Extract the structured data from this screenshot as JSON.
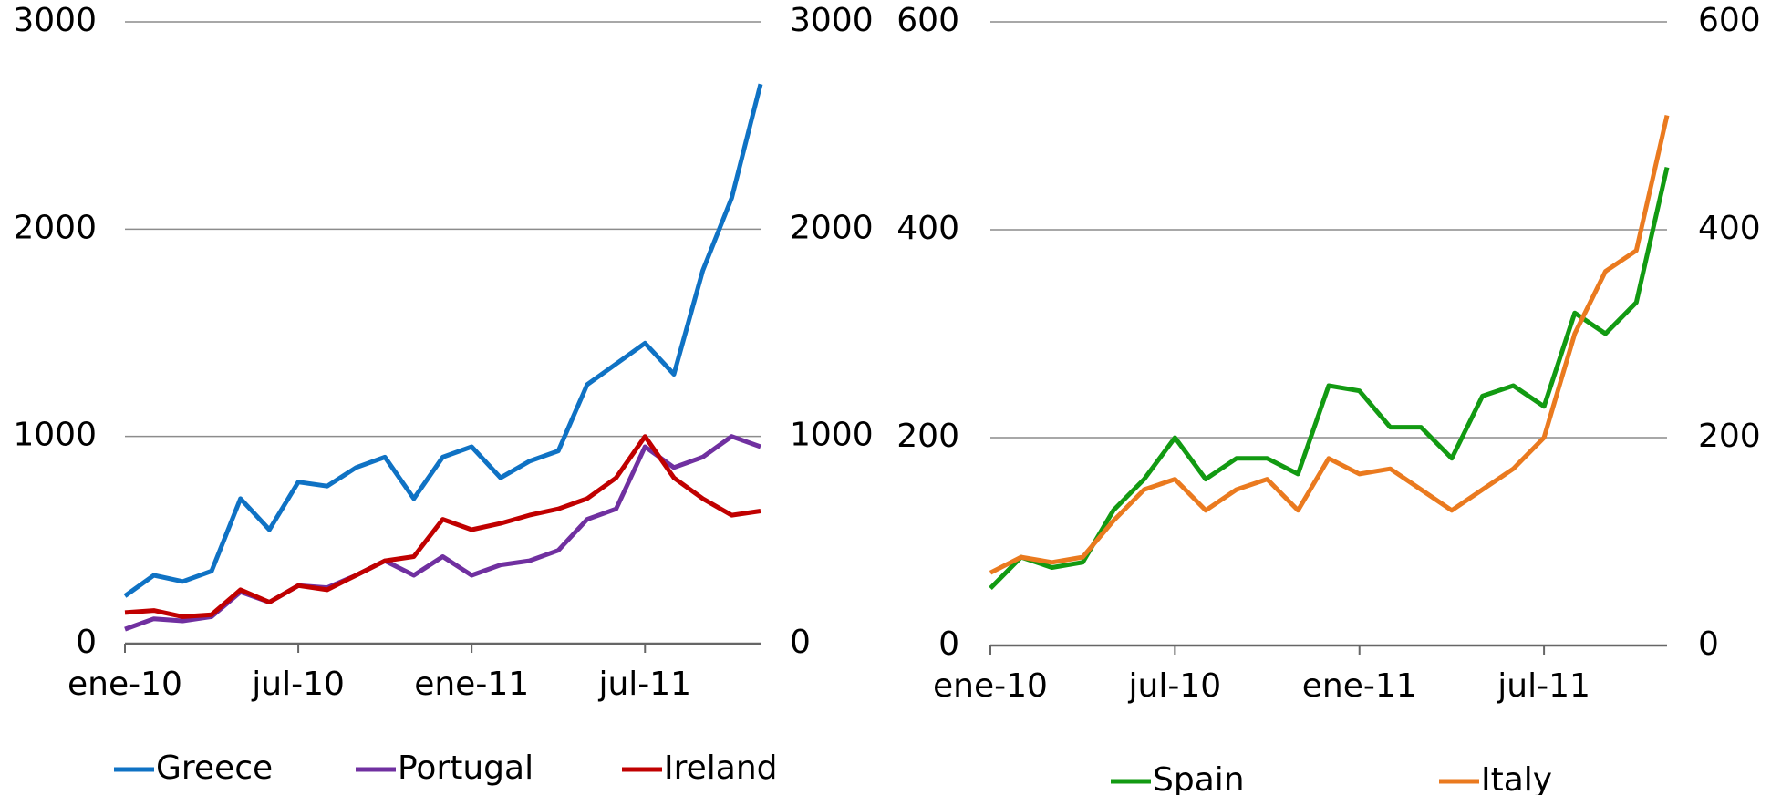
{
  "chart_data": [
    {
      "type": "line",
      "x": [
        "2010-01",
        "2010-02",
        "2010-03",
        "2010-04",
        "2010-05",
        "2010-06",
        "2010-07",
        "2010-08",
        "2010-09",
        "2010-10",
        "2010-11",
        "2010-12",
        "2011-01",
        "2011-02",
        "2011-03",
        "2011-04",
        "2011-05",
        "2011-06",
        "2011-07",
        "2011-08",
        "2011-09",
        "2011-10",
        "2011-11"
      ],
      "xticks": [
        {
          "value": "2010-01",
          "label": "ene-10"
        },
        {
          "value": "2010-07",
          "label": "jul-10"
        },
        {
          "value": "2011-01",
          "label": "ene-11"
        },
        {
          "value": "2011-07",
          "label": "jul-11"
        }
      ],
      "ylim": [
        0,
        3000
      ],
      "yticks": [
        0,
        1000,
        2000,
        3000
      ],
      "y2lim": [
        0,
        3000
      ],
      "y2ticks": [
        0,
        1000,
        2000,
        3000
      ],
      "grid": true,
      "legend": "bottom",
      "series": [
        {
          "name": "Greece",
          "color": "#0f72c4",
          "values": [
            230,
            330,
            300,
            350,
            700,
            550,
            780,
            760,
            850,
            900,
            700,
            900,
            950,
            800,
            880,
            930,
            1250,
            1350,
            1450,
            1300,
            1800,
            2150,
            2700
          ]
        },
        {
          "name": "Portugal",
          "color": "#7030a0",
          "values": [
            70,
            120,
            110,
            130,
            250,
            200,
            280,
            270,
            330,
            400,
            330,
            420,
            330,
            380,
            400,
            450,
            600,
            650,
            950,
            850,
            900,
            1000,
            950
          ]
        },
        {
          "name": "Ireland",
          "color": "#c00000",
          "values": [
            150,
            160,
            130,
            140,
            260,
            200,
            280,
            260,
            330,
            400,
            420,
            600,
            550,
            580,
            620,
            650,
            700,
            800,
            1000,
            800,
            700,
            620,
            640
          ]
        }
      ]
    },
    {
      "type": "line",
      "x": [
        "2010-01",
        "2010-02",
        "2010-03",
        "2010-04",
        "2010-05",
        "2010-06",
        "2010-07",
        "2010-08",
        "2010-09",
        "2010-10",
        "2010-11",
        "2010-12",
        "2011-01",
        "2011-02",
        "2011-03",
        "2011-04",
        "2011-05",
        "2011-06",
        "2011-07",
        "2011-08",
        "2011-09",
        "2011-10",
        "2011-11"
      ],
      "xticks": [
        {
          "value": "2010-01",
          "label": "ene-10"
        },
        {
          "value": "2010-07",
          "label": "jul-10"
        },
        {
          "value": "2011-01",
          "label": "ene-11"
        },
        {
          "value": "2011-07",
          "label": "jul-11"
        }
      ],
      "ylim": [
        0,
        600
      ],
      "yticks": [
        0,
        200,
        400,
        600
      ],
      "y2lim": [
        0,
        600
      ],
      "y2ticks": [
        0,
        200,
        400,
        600
      ],
      "grid": true,
      "legend": "bottom",
      "series": [
        {
          "name": "Spain",
          "color": "#129a12",
          "values": [
            55,
            85,
            75,
            80,
            130,
            160,
            200,
            160,
            180,
            180,
            165,
            250,
            245,
            210,
            210,
            180,
            240,
            250,
            230,
            320,
            300,
            330,
            460
          ]
        },
        {
          "name": "Italy",
          "color": "#ea7a1f",
          "values": [
            70,
            85,
            80,
            85,
            120,
            150,
            160,
            130,
            150,
            160,
            130,
            180,
            165,
            170,
            150,
            130,
            150,
            170,
            200,
            300,
            360,
            380,
            510
          ]
        }
      ]
    }
  ]
}
